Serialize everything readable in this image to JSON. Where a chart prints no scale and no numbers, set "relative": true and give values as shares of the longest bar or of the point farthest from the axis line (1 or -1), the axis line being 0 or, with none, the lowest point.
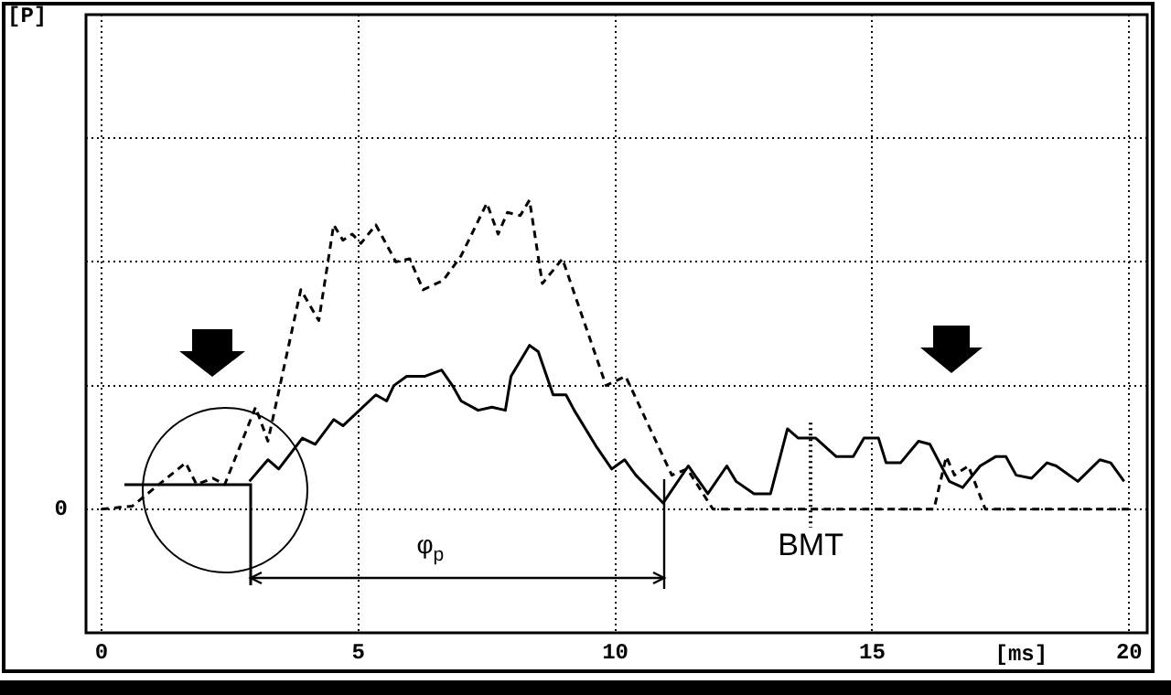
{
  "chart_data": {
    "type": "line",
    "relative": true,
    "xlabel": "[ms]",
    "xlim": [
      -0.3,
      20.35
    ],
    "xticks": [
      0,
      5,
      10,
      15,
      20
    ],
    "grid": true,
    "legend": false,
    "marker": "none",
    "series": [
      {
        "color": "#000000",
        "line_style": "dashed",
        "x": [
          0,
          0.6,
          1.64,
          1.85,
          2.17,
          2.4,
          3.0,
          3.24,
          3.88,
          4.23,
          4.52,
          4.7,
          4.88,
          5.05,
          5.34,
          5.73,
          6.0,
          6.26,
          6.65,
          7.0,
          7.5,
          7.72,
          7.9,
          8.15,
          8.33,
          8.58,
          8.97,
          9.82,
          10.2,
          11.1,
          11.4,
          11.9,
          16.2,
          16.44,
          16.6,
          16.87,
          17.2,
          20
        ],
        "values": [
          0,
          0.01,
          0.15,
          0.08,
          0.1,
          0.08,
          0.33,
          0.22,
          0.71,
          0.61,
          0.92,
          0.87,
          0.89,
          0.86,
          0.92,
          0.8,
          0.81,
          0.71,
          0.74,
          0.82,
          0.99,
          0.89,
          0.96,
          0.95,
          1,
          0.73,
          0.81,
          0.4,
          0.43,
          0.11,
          0.13,
          0,
          0,
          0.17,
          0.11,
          0.14,
          0,
          0
        ]
      },
      {
        "color": "#000000",
        "line_style": "solid",
        "x": [
          2.88,
          3.24,
          3.45,
          3.91,
          4.16,
          4.52,
          4.7,
          5.34,
          5.55,
          5.69,
          5.94,
          6.3,
          6.62,
          6.83,
          7.0,
          7.33,
          7.6,
          7.86,
          7.97,
          8.33,
          8.5,
          8.79,
          9.04,
          9.2,
          9.64,
          9.93,
          10.18,
          10.4,
          10.93,
          11.42,
          11.8,
          12.17,
          12.35,
          12.7,
          13.02,
          13.35,
          13.56,
          13.9,
          14.3,
          14.63,
          14.84,
          15.12,
          15.27,
          15.55,
          15.9,
          16.12,
          16.5,
          16.76,
          17.1,
          17.4,
          17.6,
          17.8,
          18.1,
          18.4,
          18.58,
          19.0,
          19.43,
          19.64,
          19.9
        ],
        "values": [
          0.09,
          0.16,
          0.13,
          0.23,
          0.21,
          0.29,
          0.27,
          0.37,
          0.35,
          0.4,
          0.43,
          0.43,
          0.45,
          0.4,
          0.35,
          0.32,
          0.33,
          0.32,
          0.43,
          0.53,
          0.51,
          0.37,
          0.37,
          0.32,
          0.2,
          0.13,
          0.16,
          0.11,
          0.02,
          0.14,
          0.05,
          0.14,
          0.09,
          0.05,
          0.05,
          0.26,
          0.23,
          0.23,
          0.17,
          0.17,
          0.23,
          0.23,
          0.15,
          0.15,
          0.22,
          0.21,
          0.09,
          0.07,
          0.14,
          0.17,
          0.17,
          0.11,
          0.1,
          0.15,
          0.14,
          0.09,
          0.16,
          0.15,
          0.09
        ]
      }
    ],
    "ref_lines": [
      {
        "axis": "x",
        "value": 13.8,
        "label": "BMT",
        "line_style": "dotted"
      }
    ],
    "annotations": [
      "0",
      "φ$_{p}$",
      "[P]"
    ]
  }
}
